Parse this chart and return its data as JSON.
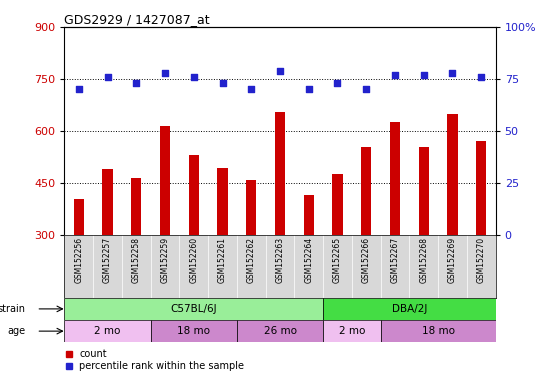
{
  "title": "GDS2929 / 1427087_at",
  "samples": [
    "GSM152256",
    "GSM152257",
    "GSM152258",
    "GSM152259",
    "GSM152260",
    "GSM152261",
    "GSM152262",
    "GSM152263",
    "GSM152264",
    "GSM152265",
    "GSM152266",
    "GSM152267",
    "GSM152268",
    "GSM152269",
    "GSM152270"
  ],
  "counts": [
    405,
    490,
    465,
    615,
    530,
    495,
    460,
    655,
    415,
    475,
    555,
    625,
    555,
    650,
    570
  ],
  "percentile_ranks": [
    70,
    76,
    73,
    78,
    76,
    73,
    70,
    79,
    70,
    73,
    70,
    77,
    77,
    78,
    76
  ],
  "ylim_left": [
    300,
    900
  ],
  "ylim_right": [
    0,
    100
  ],
  "yticks_left": [
    300,
    450,
    600,
    750,
    900
  ],
  "yticks_right": [
    0,
    25,
    50,
    75,
    100
  ],
  "bar_color": "#cc0000",
  "dot_color": "#2222cc",
  "plot_bg_color": "#ffffff",
  "outer_bg_color": "#ffffff",
  "grid_color": "black",
  "strain_groups": [
    {
      "label": "C57BL/6J",
      "start": 0,
      "end": 9,
      "color": "#99ee99"
    },
    {
      "label": "DBA/2J",
      "start": 9,
      "end": 15,
      "color": "#44dd44"
    }
  ],
  "age_groups": [
    {
      "label": "2 mo",
      "start": 0,
      "end": 3,
      "color": "#f0c0f0"
    },
    {
      "label": "18 mo",
      "start": 3,
      "end": 6,
      "color": "#dd88dd"
    },
    {
      "label": "26 mo",
      "start": 6,
      "end": 9,
      "color": "#dd88dd"
    },
    {
      "label": "2 mo",
      "start": 9,
      "end": 11,
      "color": "#f0c0f0"
    },
    {
      "label": "18 mo",
      "start": 11,
      "end": 15,
      "color": "#dd88dd"
    }
  ],
  "legend_items": [
    {
      "label": "count",
      "color": "#cc0000"
    },
    {
      "label": "percentile rank within the sample",
      "color": "#2222cc"
    }
  ],
  "bar_width": 0.35,
  "dot_size": 20
}
